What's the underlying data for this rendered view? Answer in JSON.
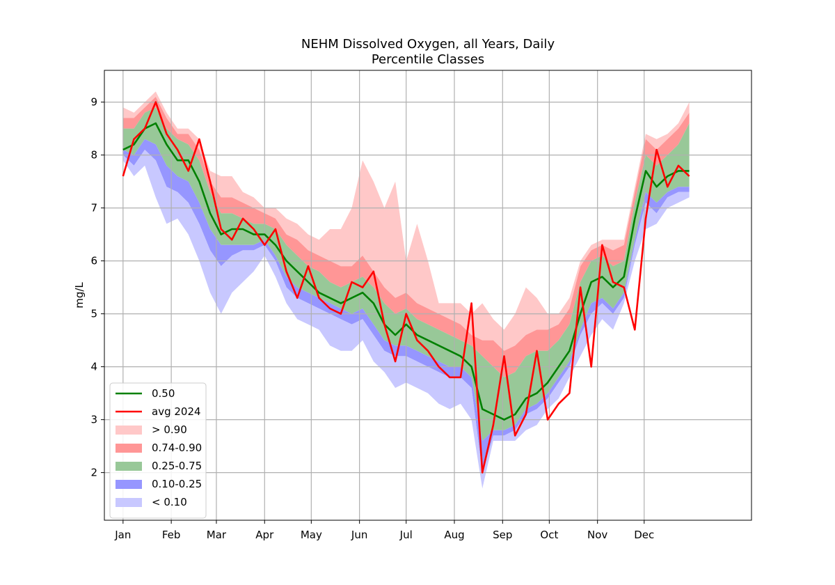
{
  "chart_data": {
    "type": "area",
    "title": "NEHM Dissolved Oxygen, all Years, Daily",
    "subtitle": "Percentile Classes",
    "xlabel": "",
    "ylabel": "mg/L",
    "ylim": [
      1.1,
      9.6
    ],
    "yticks": [
      2,
      3,
      4,
      5,
      6,
      7,
      8,
      9
    ],
    "xlim": [
      -11,
      405
    ],
    "month_ticks": [
      {
        "day": 1,
        "label": "Jan"
      },
      {
        "day": 32,
        "label": "Feb"
      },
      {
        "day": 61,
        "label": "Mar"
      },
      {
        "day": 92,
        "label": "Apr"
      },
      {
        "day": 122,
        "label": "May"
      },
      {
        "day": 153,
        "label": "Jun"
      },
      {
        "day": 183,
        "label": "Jul"
      },
      {
        "day": 214,
        "label": "Aug"
      },
      {
        "day": 245,
        "label": "Sep"
      },
      {
        "day": 275,
        "label": "Oct"
      },
      {
        "day": 306,
        "label": "Nov"
      },
      {
        "day": 336,
        "label": "Dec"
      }
    ],
    "grid": true,
    "legend_position": "lower-left",
    "x_day": [
      1,
      8,
      15,
      22,
      29,
      36,
      43,
      50,
      57,
      64,
      71,
      78,
      85,
      92,
      99,
      106,
      113,
      120,
      127,
      134,
      141,
      148,
      155,
      162,
      169,
      176,
      183,
      190,
      197,
      204,
      211,
      218,
      225,
      232,
      239,
      246,
      253,
      260,
      267,
      274,
      281,
      288,
      295,
      302,
      309,
      316,
      323,
      330,
      337,
      344,
      351,
      358,
      365
    ],
    "percentiles": {
      "p00": [
        7.9,
        7.6,
        7.8,
        7.2,
        6.7,
        6.8,
        6.5,
        6.0,
        5.4,
        5.0,
        5.4,
        5.6,
        5.8,
        6.1,
        5.7,
        5.2,
        4.9,
        4.8,
        4.7,
        4.4,
        4.3,
        4.3,
        4.5,
        4.1,
        3.9,
        3.6,
        3.7,
        3.6,
        3.5,
        3.3,
        3.2,
        3.3,
        3.0,
        1.7,
        2.6,
        2.6,
        2.6,
        2.8,
        2.9,
        3.2,
        3.4,
        3.8,
        4.2,
        4.6,
        4.9,
        4.7,
        5.2,
        6.0,
        6.6,
        6.7,
        7.0,
        7.1,
        7.2
      ],
      "p10": [
        8.0,
        7.8,
        8.1,
        7.9,
        7.4,
        7.3,
        7.1,
        6.7,
        6.2,
        5.9,
        6.1,
        6.2,
        6.2,
        6.3,
        6.0,
        5.5,
        5.3,
        5.2,
        5.1,
        5.0,
        4.9,
        4.8,
        4.9,
        4.6,
        4.3,
        4.2,
        4.2,
        4.1,
        4.0,
        3.9,
        3.8,
        3.8,
        3.6,
        2.0,
        2.7,
        2.7,
        2.8,
        3.1,
        3.2,
        3.4,
        3.7,
        4.0,
        4.6,
        5.0,
        5.2,
        5.0,
        5.3,
        6.3,
        7.1,
        6.9,
        7.2,
        7.3,
        7.3
      ],
      "p25": [
        8.1,
        8.0,
        8.3,
        8.2,
        7.8,
        7.6,
        7.5,
        7.1,
        6.6,
        6.3,
        6.3,
        6.3,
        6.3,
        6.4,
        6.1,
        5.7,
        5.5,
        5.4,
        5.3,
        5.2,
        5.1,
        5.0,
        5.1,
        4.8,
        4.5,
        4.4,
        4.4,
        4.3,
        4.2,
        4.1,
        4.0,
        4.0,
        3.8,
        2.6,
        2.8,
        2.8,
        2.9,
        3.2,
        3.3,
        3.5,
        3.8,
        4.1,
        4.7,
        5.2,
        5.3,
        5.1,
        5.4,
        6.4,
        7.3,
        7.1,
        7.3,
        7.4,
        7.4
      ],
      "p50": [
        8.1,
        8.2,
        8.5,
        8.6,
        8.2,
        7.9,
        7.9,
        7.5,
        6.9,
        6.5,
        6.6,
        6.6,
        6.5,
        6.5,
        6.3,
        6.0,
        5.8,
        5.6,
        5.4,
        5.3,
        5.2,
        5.3,
        5.4,
        5.2,
        4.8,
        4.6,
        4.8,
        4.6,
        4.5,
        4.4,
        4.3,
        4.2,
        4.0,
        3.2,
        3.1,
        3.0,
        3.1,
        3.4,
        3.5,
        3.7,
        4.0,
        4.3,
        5.0,
        5.6,
        5.7,
        5.5,
        5.7,
        6.8,
        7.7,
        7.4,
        7.6,
        7.7,
        7.7
      ],
      "p75": [
        8.5,
        8.5,
        8.8,
        8.9,
        8.5,
        8.3,
        8.2,
        7.9,
        7.3,
        6.9,
        6.9,
        6.8,
        6.7,
        6.7,
        6.6,
        6.3,
        6.1,
        5.9,
        5.8,
        5.6,
        5.5,
        5.6,
        5.7,
        5.5,
        5.2,
        5.0,
        5.1,
        4.9,
        4.8,
        4.7,
        4.6,
        4.5,
        4.4,
        4.2,
        4.0,
        3.8,
        3.9,
        4.2,
        4.3,
        4.3,
        4.5,
        4.8,
        5.6,
        6.0,
        6.1,
        5.9,
        6.0,
        7.1,
        8.0,
        7.8,
        8.0,
        8.2,
        8.6
      ],
      "p90": [
        8.7,
        8.7,
        8.9,
        9.1,
        8.7,
        8.4,
        8.4,
        8.1,
        7.5,
        7.2,
        7.2,
        7.1,
        7.0,
        6.9,
        6.8,
        6.5,
        6.4,
        6.2,
        6.1,
        6.0,
        5.9,
        5.9,
        6.1,
        5.8,
        5.5,
        5.3,
        5.4,
        5.2,
        5.1,
        5.0,
        4.9,
        4.8,
        4.6,
        4.5,
        4.5,
        4.3,
        4.4,
        4.6,
        4.7,
        4.7,
        4.8,
        5.1,
        5.9,
        6.2,
        6.3,
        6.2,
        6.3,
        7.3,
        8.3,
        8.1,
        8.3,
        8.5,
        8.8
      ],
      "p100": [
        8.9,
        8.8,
        9.0,
        9.2,
        8.8,
        8.5,
        8.5,
        8.3,
        7.7,
        7.6,
        7.6,
        7.3,
        7.2,
        7.0,
        7.0,
        6.8,
        6.7,
        6.5,
        6.4,
        6.6,
        6.6,
        7.0,
        7.9,
        7.5,
        7.0,
        7.5,
        6.0,
        6.7,
        6.0,
        5.2,
        5.2,
        5.2,
        5.0,
        5.2,
        4.9,
        4.7,
        5.0,
        5.5,
        5.3,
        5.0,
        5.0,
        5.3,
        6.0,
        6.3,
        6.4,
        6.4,
        6.4,
        7.4,
        8.4,
        8.3,
        8.4,
        8.6,
        9.0
      ]
    },
    "series": [
      {
        "name": "0.50",
        "color": "#008000",
        "values_key": "p50"
      },
      {
        "name": "avg 2024",
        "color": "#ff0000",
        "values": [
          7.6,
          8.3,
          8.5,
          9.0,
          8.4,
          8.1,
          7.7,
          8.3,
          7.5,
          6.6,
          6.4,
          6.8,
          6.6,
          6.3,
          6.6,
          5.8,
          5.3,
          5.9,
          5.3,
          5.1,
          5.0,
          5.6,
          5.5,
          5.8,
          4.8,
          4.1,
          5.0,
          4.5,
          4.3,
          4.0,
          3.8,
          3.8,
          5.2,
          2.0,
          2.9,
          4.2,
          2.7,
          3.1,
          4.3,
          3.0,
          3.3,
          3.5,
          5.5,
          4.0,
          6.3,
          5.6,
          5.5,
          4.7,
          6.8,
          8.1,
          7.4,
          7.8,
          7.6
        ]
      }
    ],
    "bands": [
      {
        "name": "> 0.90",
        "color": "#ffc8c8",
        "lower": "p90",
        "upper": "p100"
      },
      {
        "name": "0.74-0.90",
        "color": "#ff9696",
        "lower": "p75",
        "upper": "p90"
      },
      {
        "name": "0.25-0.75",
        "color": "#98c898",
        "lower": "p25",
        "upper": "p75"
      },
      {
        "name": "0.10-0.25",
        "color": "#9696ff",
        "lower": "p10",
        "upper": "p25"
      },
      {
        "name": "< 0.10",
        "color": "#c8c8ff",
        "lower": "p00",
        "upper": "p10"
      }
    ]
  }
}
